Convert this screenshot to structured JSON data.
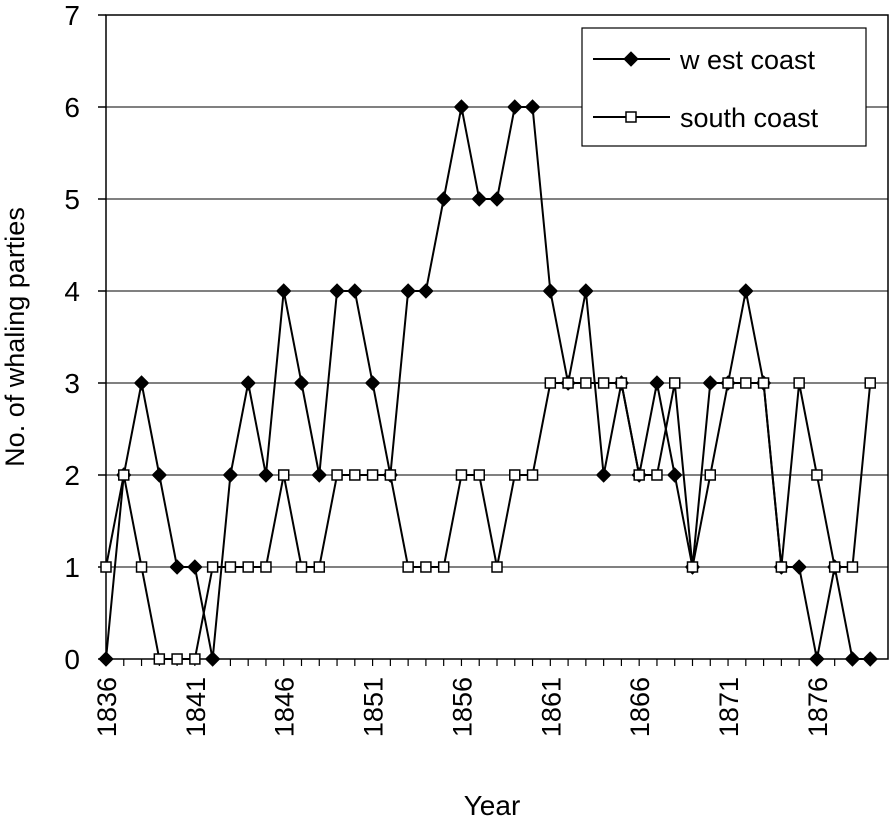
{
  "chart_data": {
    "type": "line",
    "xlabel": "Year",
    "ylabel": "No. of whaling parties",
    "ylim": [
      0,
      7
    ],
    "yticks": [
      0,
      1,
      2,
      3,
      4,
      5,
      6,
      7
    ],
    "xlim": [
      1836,
      1880
    ],
    "xticks": [
      1836,
      1841,
      1846,
      1851,
      1856,
      1861,
      1866,
      1871,
      1876
    ],
    "grid": "horizontal",
    "legend_position": "top-right",
    "x": [
      1836,
      1837,
      1838,
      1839,
      1840,
      1841,
      1842,
      1843,
      1844,
      1845,
      1846,
      1847,
      1848,
      1849,
      1850,
      1851,
      1852,
      1853,
      1854,
      1855,
      1856,
      1857,
      1858,
      1859,
      1860,
      1861,
      1862,
      1863,
      1864,
      1865,
      1866,
      1867,
      1868,
      1869,
      1870,
      1871,
      1872,
      1873,
      1874,
      1875,
      1876,
      1877,
      1878,
      1879
    ],
    "series": [
      {
        "name": "w est coast",
        "marker": "filled-diamond",
        "values": [
          0,
          2,
          3,
          2,
          1,
          1,
          0,
          2,
          3,
          2,
          4,
          3,
          2,
          4,
          4,
          3,
          2,
          4,
          4,
          5,
          6,
          5,
          5,
          6,
          6,
          4,
          3,
          4,
          2,
          3,
          2,
          3,
          2,
          1,
          3,
          3,
          4,
          3,
          1,
          1,
          0,
          1,
          0,
          0
        ]
      },
      {
        "name": "south coast",
        "marker": "open-square",
        "values": [
          1,
          2,
          1,
          0,
          0,
          0,
          1,
          1,
          1,
          1,
          2,
          1,
          1,
          2,
          2,
          2,
          2,
          1,
          1,
          1,
          2,
          2,
          1,
          2,
          2,
          3,
          3,
          3,
          3,
          3,
          2,
          2,
          3,
          1,
          2,
          3,
          3,
          3,
          1,
          3,
          2,
          1,
          1,
          3
        ]
      }
    ]
  }
}
